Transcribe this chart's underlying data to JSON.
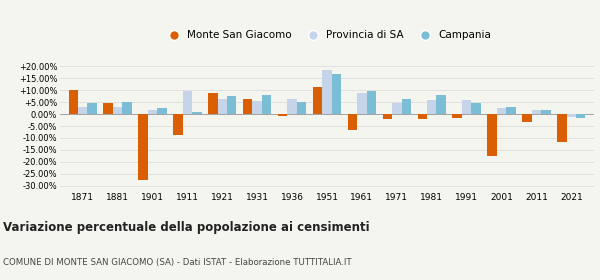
{
  "years": [
    1871,
    1881,
    1901,
    1911,
    1921,
    1931,
    1936,
    1951,
    1961,
    1971,
    1981,
    1991,
    2001,
    2011,
    2021
  ],
  "monte": [
    10.0,
    4.8,
    -27.5,
    -8.8,
    8.8,
    6.2,
    -0.8,
    11.2,
    -6.8,
    -2.2,
    -2.0,
    -1.5,
    -17.5,
    -3.5,
    -11.5
  ],
  "provincia": [
    3.0,
    3.0,
    1.5,
    9.5,
    6.5,
    5.5,
    6.5,
    18.5,
    9.0,
    4.8,
    5.8,
    5.8,
    2.5,
    1.5,
    -1.2
  ],
  "campania": [
    4.8,
    5.2,
    2.5,
    0.8,
    7.5,
    7.8,
    5.0,
    17.0,
    9.5,
    6.2,
    7.8,
    4.8,
    3.0,
    1.5,
    -1.5
  ],
  "color_monte": "#d95f02",
  "color_provincia": "#c6d4ea",
  "color_campania": "#7bbdd4",
  "title": "Variazione percentuale della popolazione ai censimenti",
  "subtitle": "COMUNE DI MONTE SAN GIACOMO (SA) - Dati ISTAT - Elaborazione TUTTITALIA.IT",
  "legend_labels": [
    "Monte San Giacomo",
    "Provincia di SA",
    "Campania"
  ],
  "yticks": [
    -30,
    -25,
    -20,
    -15,
    -10,
    -5,
    0,
    5,
    10,
    15,
    20
  ],
  "ylim": [
    -32,
    22
  ],
  "background_color": "#f5f5f0",
  "grid_color": "#dddddd"
}
